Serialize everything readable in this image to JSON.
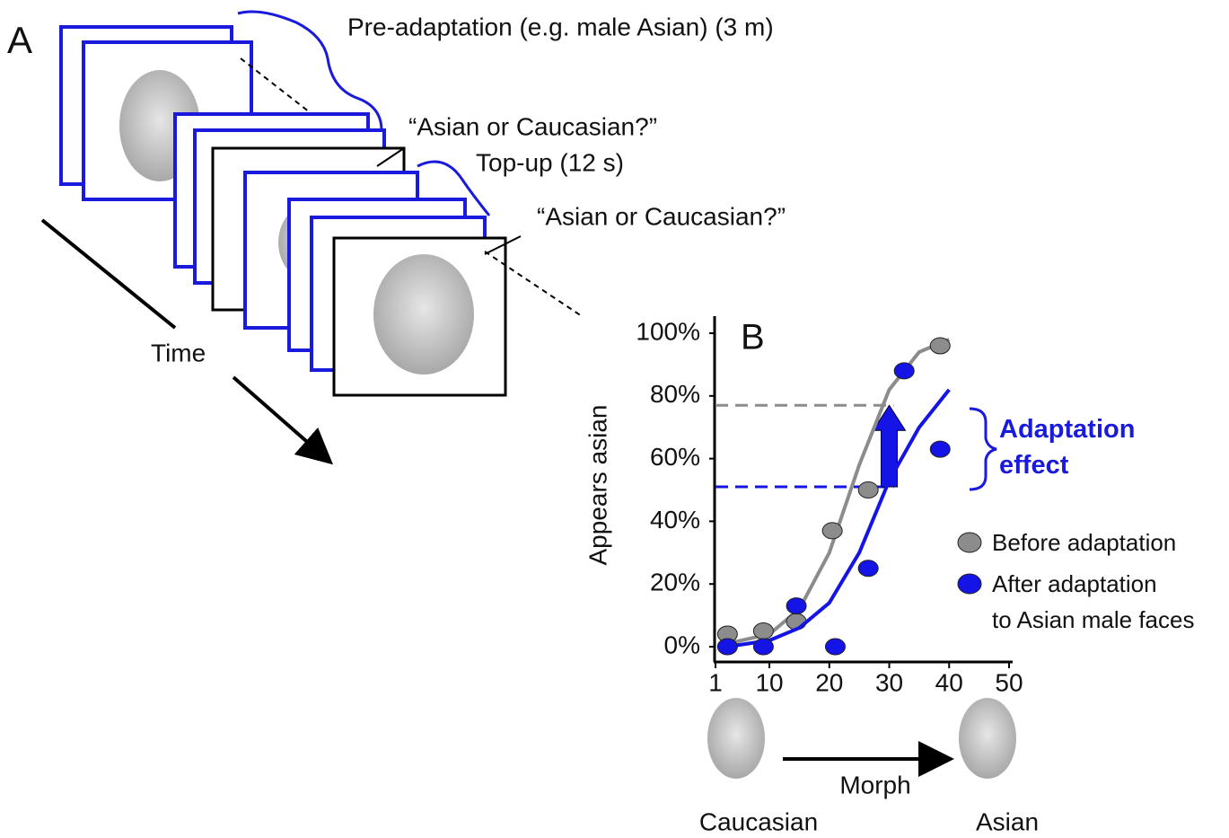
{
  "panel_a": {
    "label": "A",
    "pre_adaptation": "Pre-adaptation (e.g. male Asian) (3 m)",
    "question_1": "“Asian or Caucasian?”",
    "top_up": "Top-up (12 s)",
    "question_2": "“Asian or Caucasian?”",
    "time": "Time"
  },
  "chart_data": {
    "type": "scatter",
    "label": "B",
    "ylabel": "Appears asian",
    "xlim": [
      1,
      50
    ],
    "xticks": [
      1,
      10,
      20,
      30,
      40,
      50
    ],
    "ylim": [
      0,
      100
    ],
    "yticks": [
      {
        "value": 0,
        "label": "0%"
      },
      {
        "value": 20,
        "label": "20%"
      },
      {
        "value": 40,
        "label": "40%"
      },
      {
        "value": 60,
        "label": "60%"
      },
      {
        "value": 80,
        "label": "80%"
      },
      {
        "value": 100,
        "label": "100%"
      }
    ],
    "series": [
      {
        "name": "Before adaptation",
        "color": "#8c8c8c",
        "x": [
          3,
          9,
          14.5,
          20.5,
          26.5,
          38.5
        ],
        "values": [
          4,
          5,
          8,
          37,
          50,
          96
        ],
        "fit_x": [
          3,
          10,
          15,
          20,
          25,
          30,
          35,
          40
        ],
        "fit": [
          1,
          4,
          12,
          30,
          58,
          82,
          94,
          98
        ]
      },
      {
        "name": "After adaptation\nto Asian male faces",
        "color": "#1414e6",
        "x": [
          3,
          9,
          14.5,
          21,
          26.5,
          32.5,
          38.5
        ],
        "values": [
          0,
          0,
          13,
          0,
          25,
          88,
          63
        ],
        "fit_x": [
          3,
          10,
          15,
          20,
          25,
          30,
          35,
          40
        ],
        "fit": [
          0,
          2,
          6,
          14,
          30,
          53,
          70,
          82
        ]
      }
    ],
    "reference_lines": [
      77,
      51
    ],
    "annotation": "Adaptation\neffect",
    "morph_label": "Morph",
    "left_label": "Caucasian",
    "right_label": "Asian"
  }
}
